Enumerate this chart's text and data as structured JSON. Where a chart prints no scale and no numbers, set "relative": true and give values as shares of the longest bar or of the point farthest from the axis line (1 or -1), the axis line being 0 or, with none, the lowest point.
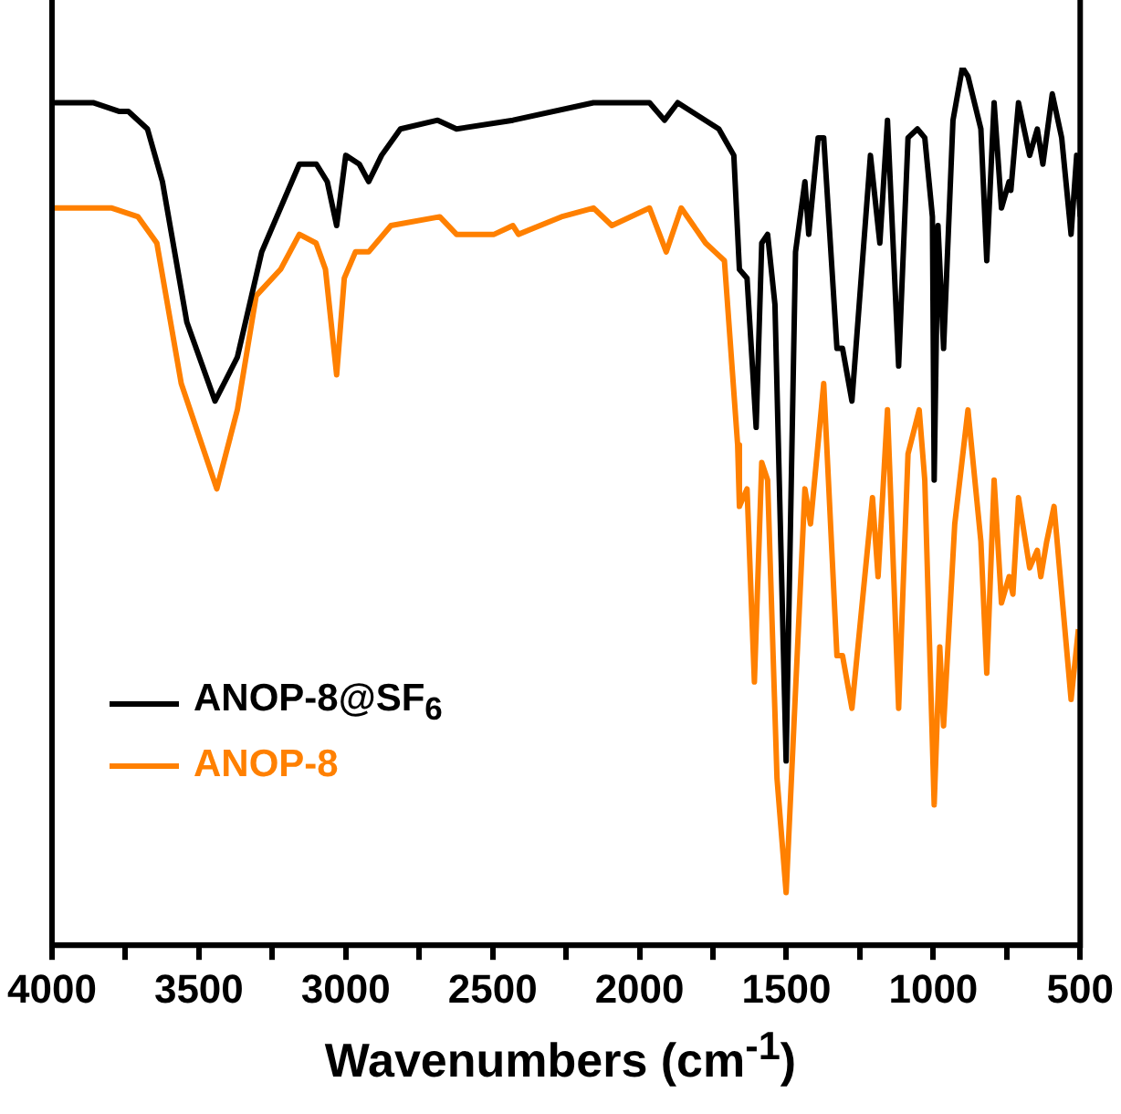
{
  "chart_data": {
    "type": "line",
    "relative": true,
    "xlabel": "Wavenumbers (cm$^{-1}$)",
    "xlim": [
      4000,
      500
    ],
    "xticks": [
      4000,
      {
        "value": 3750,
        "label": null
      },
      3500,
      {
        "value": 3250,
        "label": null
      },
      3000,
      {
        "value": 2750,
        "label": null
      },
      2500,
      {
        "value": 2250,
        "label": null
      },
      2000,
      {
        "value": 1750,
        "label": null
      },
      1500,
      {
        "value": 1250,
        "label": null
      },
      1000,
      {
        "value": 750,
        "label": null
      },
      500
    ],
    "grid": false,
    "legend": "left",
    "marker": "none",
    "line_style": "solid",
    "series": [
      {
        "name": "ANOP-8@SF$_{6}$",
        "color": "#000000",
        "x": [
          4000,
          3860,
          3770,
          3740,
          3675,
          3624,
          3541,
          3445,
          3369,
          3286,
          3158,
          3100,
          3063,
          3031,
          3000,
          2954,
          2922,
          2878,
          2814,
          2687,
          2623,
          2431,
          2157,
          1966,
          1915,
          1870,
          1730,
          1679,
          1660,
          1634,
          1603,
          1584,
          1564,
          1539,
          1501,
          1469,
          1437,
          1424,
          1392,
          1373,
          1328,
          1309,
          1277,
          1214,
          1182,
          1156,
          1118,
          1086,
          1054,
          1029,
          1003,
          997,
          984,
          965,
          933,
          901,
          882,
          838,
          818,
          793,
          768,
          742,
          736,
          710,
          691,
          672,
          646,
          627,
          595,
          563,
          531,
          512,
          500
        ],
        "values": [
          0.96,
          0.96,
          0.95,
          0.95,
          0.93,
          0.87,
          0.71,
          0.62,
          0.67,
          0.79,
          0.89,
          0.89,
          0.87,
          0.82,
          0.9,
          0.89,
          0.87,
          0.9,
          0.93,
          0.94,
          0.93,
          0.94,
          0.96,
          0.96,
          0.94,
          0.96,
          0.93,
          0.9,
          0.77,
          0.76,
          0.59,
          0.8,
          0.81,
          0.73,
          0.21,
          0.79,
          0.87,
          0.81,
          0.92,
          0.92,
          0.68,
          0.68,
          0.62,
          0.9,
          0.8,
          0.94,
          0.66,
          0.92,
          0.93,
          0.92,
          0.83,
          0.53,
          0.82,
          0.68,
          0.94,
          1.0,
          0.99,
          0.93,
          0.78,
          0.96,
          0.84,
          0.87,
          0.86,
          0.96,
          0.93,
          0.9,
          0.93,
          0.89,
          0.97,
          0.92,
          0.81,
          0.9,
          0.83
        ]
      },
      {
        "name": "ANOP-8",
        "color": "#ff8000",
        "x": [
          4000,
          3796,
          3707,
          3643,
          3560,
          3439,
          3369,
          3305,
          3222,
          3158,
          3101,
          3069,
          3031,
          3005,
          2967,
          2922,
          2846,
          2680,
          2623,
          2540,
          2495,
          2431,
          2412,
          2266,
          2157,
          2094,
          1966,
          1909,
          1858,
          1775,
          1743,
          1711,
          1666,
          1660,
          1634,
          1609,
          1584,
          1564,
          1532,
          1501,
          1437,
          1418,
          1373,
          1328,
          1309,
          1277,
          1207,
          1188,
          1156,
          1118,
          1086,
          1048,
          1029,
          997,
          978,
          965,
          927,
          882,
          838,
          818,
          793,
          768,
          742,
          729,
          710,
          672,
          646,
          634,
          614,
          589,
          531,
          506
        ],
        "values": [
          0.84,
          0.84,
          0.83,
          0.8,
          0.64,
          0.52,
          0.61,
          0.74,
          0.77,
          0.81,
          0.8,
          0.77,
          0.65,
          0.76,
          0.79,
          0.79,
          0.82,
          0.83,
          0.81,
          0.81,
          0.81,
          0.82,
          0.81,
          0.83,
          0.84,
          0.82,
          0.84,
          0.79,
          0.84,
          0.8,
          0.79,
          0.78,
          0.57,
          0.5,
          0.52,
          0.3,
          0.55,
          0.53,
          0.19,
          0.06,
          0.52,
          0.48,
          0.64,
          0.33,
          0.33,
          0.27,
          0.51,
          0.42,
          0.61,
          0.27,
          0.56,
          0.61,
          0.53,
          0.16,
          0.34,
          0.25,
          0.48,
          0.61,
          0.46,
          0.31,
          0.53,
          0.39,
          0.42,
          0.4,
          0.51,
          0.43,
          0.45,
          0.42,
          0.46,
          0.5,
          0.28,
          0.36
        ]
      }
    ]
  }
}
